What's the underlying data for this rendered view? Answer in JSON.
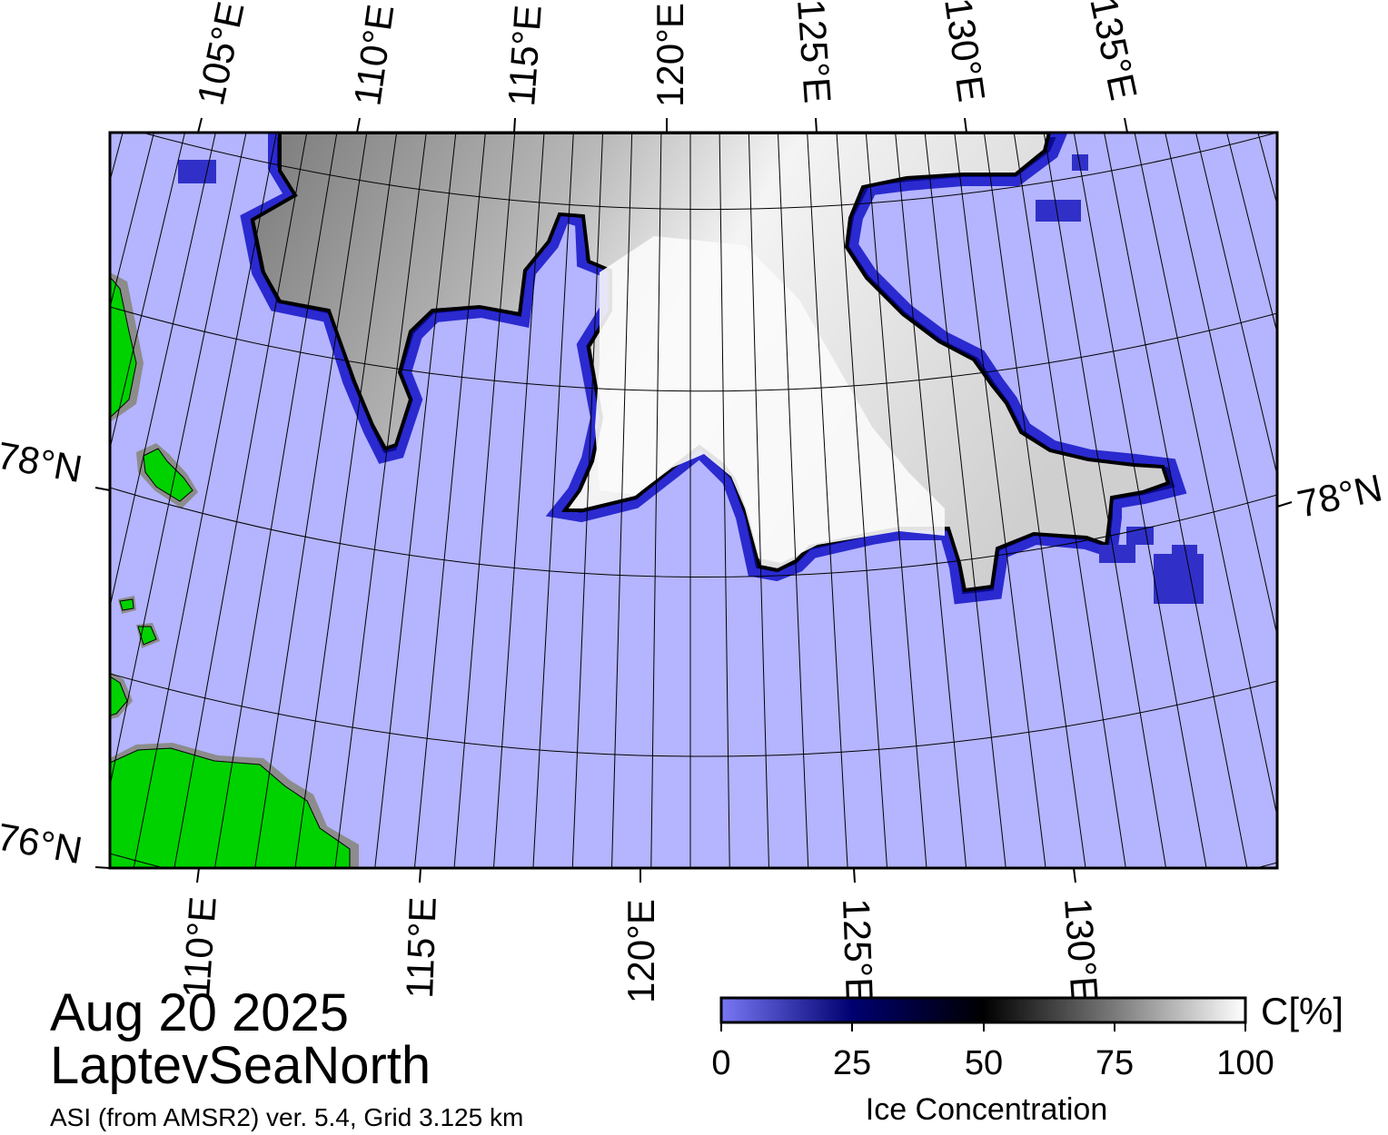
{
  "title": {
    "date": "Aug 20 2025",
    "region": "LaptevSeaNorth",
    "source": "ASI (from AMSR2) ver. 5.4,  Grid 3.125 km"
  },
  "colorbar": {
    "unit": "C[%]",
    "label": "Ice Concentration",
    "ticks": [
      "0",
      "25",
      "50",
      "75",
      "100"
    ],
    "stops": [
      {
        "value": 0,
        "color": "#7878f5"
      },
      {
        "value": 25,
        "color": "#000070"
      },
      {
        "value": 50,
        "color": "#000000"
      },
      {
        "value": 75,
        "color": "#7a7a7a"
      },
      {
        "value": 100,
        "color": "#ffffff"
      }
    ]
  },
  "graticule": {
    "top_lon_labels": [
      "105°E",
      "110°E",
      "115°E",
      "120°E",
      "125°E",
      "130°E",
      "135°E"
    ],
    "bottom_lon_labels": [
      "110°E",
      "115°E",
      "120°E",
      "125°E",
      "130°E"
    ],
    "left_lat_labels": [
      "78°N",
      "76°N"
    ],
    "right_lat_labels": [
      "78°N"
    ]
  },
  "colors": {
    "water": "#b4b4ff",
    "land": "#00d200",
    "coast_shadow": "#8c8c8c",
    "ice_edge": "#0a0a8c",
    "ice_core": "#ffffff",
    "ice_grey": "#9a9a9a"
  }
}
